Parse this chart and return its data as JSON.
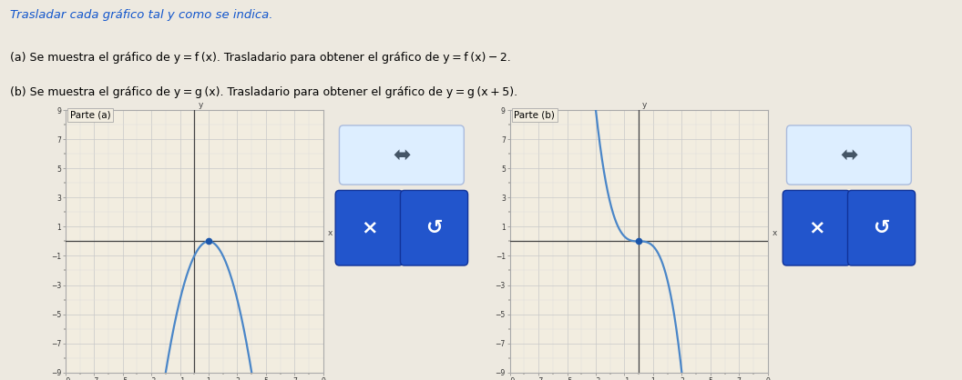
{
  "title_text": "Trasladar cada gráfico tal y como se indica.",
  "line_a": "(a) Se muestra el gráfico de y = f (x). Trasladario para obtener el gráfico de y = f (x) − 2.",
  "line_b": "(b) Se muestra el gráfico de y = g (x). Trasladario para obtener el gráfico de y = g (x + 5).",
  "panel_a_label": "Parte (a)",
  "panel_b_label": "Parte (b)",
  "xlim": [
    -9,
    9
  ],
  "ylim": [
    -9,
    9
  ],
  "curve_color": "#4a86c8",
  "dot_color": "#1a55aa",
  "grid_major_color": "#c8c8c8",
  "grid_minor_color": "#dedede",
  "bg_color": "#ede9e0",
  "panel_bg": "#f2ede0",
  "panel_border": "#aaaaaa",
  "axis_color": "#444444",
  "btn_blue": "#2255cc",
  "btn_move_bg": "#ddeeff",
  "btn_move_border": "#aabbdd",
  "text_color": "#000000",
  "title_color": "#1155cc",
  "tick_label_size": 5.5,
  "parabola_vertex_x": 1,
  "parabola_vertex_y": 0,
  "cubic_scale": 3.0,
  "dot_size": 4.5
}
